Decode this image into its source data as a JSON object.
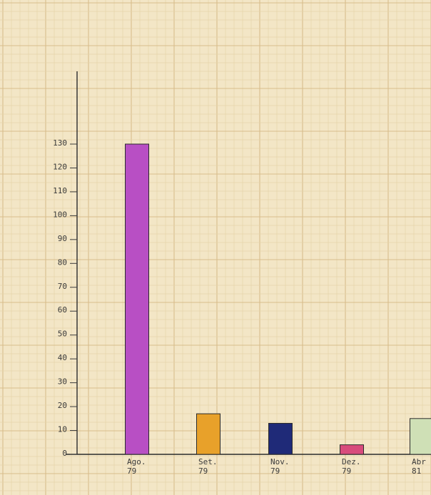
{
  "chart_data": {
    "type": "bar",
    "categories": [
      {
        "line1": "Ago.",
        "line2": "79"
      },
      {
        "line1": "Set.",
        "line2": "79"
      },
      {
        "line1": "Nov.",
        "line2": "79"
      },
      {
        "line1": "Dez.",
        "line2": "79"
      },
      {
        "line1": "Abr",
        "line2": "81"
      }
    ],
    "values": [
      130,
      17,
      13,
      4,
      15
    ],
    "colors": [
      "#b84fc4",
      "#e8a12a",
      "#1f2a78",
      "#d84b7c",
      "#cfe0b6"
    ],
    "yticks": [
      "0",
      "10",
      "20",
      "30",
      "40",
      "50",
      "60",
      "70",
      "80",
      "90",
      "100",
      "110",
      "120",
      "130"
    ],
    "ylim": [
      0,
      130
    ],
    "grid": true,
    "title": "",
    "xlabel": "",
    "ylabel": ""
  }
}
